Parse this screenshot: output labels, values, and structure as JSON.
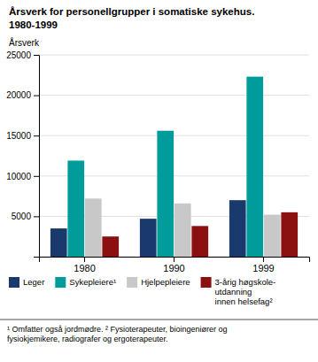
{
  "chart_data": {
    "type": "bar",
    "title": "Årsverk for personellgrupper i somatiske sykehus.",
    "subtitle": "1980-1999",
    "ylabel": "Årsverk",
    "categories": [
      "1980",
      "1990",
      "1999"
    ],
    "series": [
      {
        "name": "Leger",
        "color": "#1a3a6e",
        "values": [
          3500,
          4700,
          7000
        ]
      },
      {
        "name": "Sykepleiere¹",
        "color": "#009b9b",
        "values": [
          11900,
          15600,
          22300
        ]
      },
      {
        "name": "Hjelpepleiere",
        "color": "#c8c8c8",
        "values": [
          7200,
          6600,
          5200
        ]
      },
      {
        "name": "3-årig høgskole-\nutdanning\ninnen helsefag²",
        "color": "#8b1111",
        "values": [
          2500,
          3800,
          5500
        ]
      }
    ],
    "ylim": [
      0,
      25000
    ],
    "yticks": [
      {
        "value": 0,
        "label": null
      },
      5000,
      10000,
      15000,
      20000,
      25000
    ],
    "grid": true,
    "legend": "bottom",
    "annotations": [
      "¹ Omfatter også jordmødre.  ² Fysioterapeuter, bioingeniører og\nfysiokjemikere, radiografer og ergoterapeuter."
    ]
  }
}
